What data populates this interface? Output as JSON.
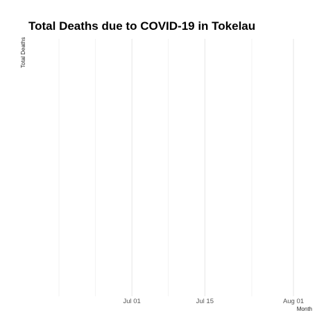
{
  "chart_data": {
    "type": "line",
    "title": "Total Deaths due to COVID-19 in Tokelau",
    "xlabel": "Month",
    "ylabel": "Total Deaths",
    "x_tick_labels": [
      "Jul 01",
      "Jul 15",
      "Aug 01"
    ],
    "x_ticks": [
      "2020-07-01",
      "2020-07-15",
      "2020-08-01"
    ],
    "x_minor_ticks": [
      "2020-06-24",
      "2020-07-08",
      "2020-07-24"
    ],
    "xlim": [
      "2020-06-17",
      "2020-08-01"
    ],
    "series": [],
    "grid": true,
    "legend": "none"
  }
}
